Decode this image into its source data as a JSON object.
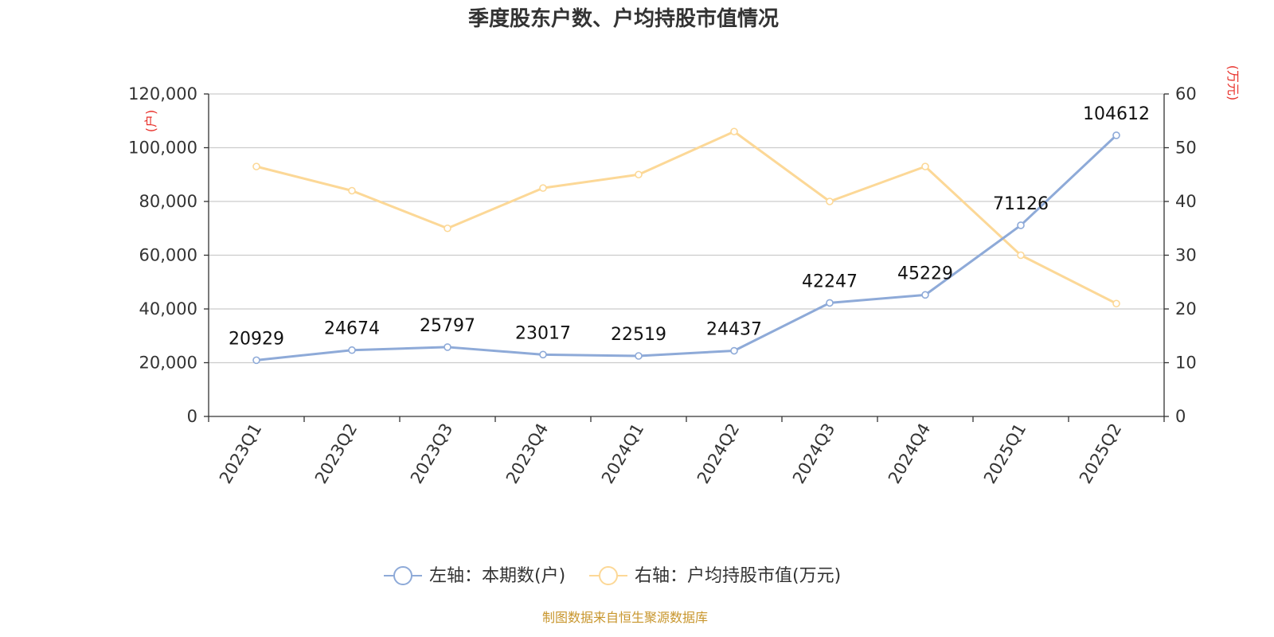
{
  "chart_data": {
    "type": "line",
    "title": "季度股东户数、户均持股市值情况",
    "categories": [
      "2023Q1",
      "2023Q2",
      "2023Q3",
      "2023Q4",
      "2024Q1",
      "2024Q2",
      "2024Q3",
      "2024Q4",
      "2025Q1",
      "2025Q2"
    ],
    "left_axis": {
      "unit": "(户)",
      "ylim": [
        0,
        120000
      ],
      "ticks": [
        0,
        20000,
        40000,
        60000,
        80000,
        100000,
        120000
      ],
      "tick_labels": [
        "0",
        "20,000",
        "40,000",
        "60,000",
        "80,000",
        "100,000",
        "120,000"
      ]
    },
    "right_axis": {
      "unit": "(万元)",
      "ylim": [
        0,
        60
      ],
      "ticks": [
        0,
        10,
        20,
        30,
        40,
        50,
        60
      ],
      "tick_labels": [
        "0",
        "10",
        "20",
        "30",
        "40",
        "50",
        "60"
      ]
    },
    "series": [
      {
        "name": "左轴：本期数(户)",
        "axis": "left",
        "color": "#8eaad8",
        "values": [
          20929,
          24674,
          25797,
          23017,
          22519,
          24437,
          42247,
          45229,
          71126,
          104612
        ],
        "labels": [
          "20929",
          "24674",
          "25797",
          "23017",
          "22519",
          "24437",
          "42247",
          "45229",
          "71126",
          "104612"
        ]
      },
      {
        "name": "右轴：户均持股市值(万元)",
        "axis": "right",
        "color": "#fcd897",
        "values": [
          46.5,
          42.0,
          35.0,
          42.5,
          45.0,
          53.0,
          40.0,
          46.5,
          30.0,
          21.0
        ]
      }
    ],
    "grid": true,
    "legend_position": "bottom"
  },
  "source": "制图数据来自恒生聚源数据库"
}
